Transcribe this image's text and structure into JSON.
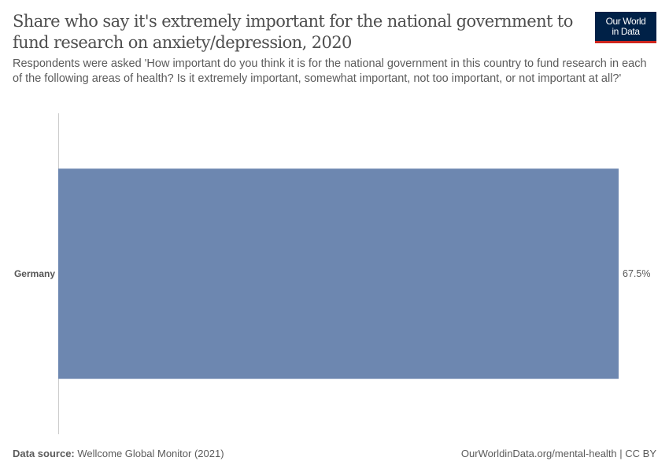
{
  "header": {
    "title": "Share who say it's extremely important for the national government to fund research on anxiety/depression, 2020",
    "subtitle": "Respondents were asked 'How important do you think it is for the national government in this country to fund research in each of the following areas of health? Is it extremely important, somewhat important, not too important, or not important at all?'",
    "logo_line1": "Our World",
    "logo_line2": "in Data"
  },
  "chart_data": {
    "type": "bar",
    "orientation": "horizontal",
    "categories": [
      "Germany"
    ],
    "values": [
      67.5
    ],
    "value_labels": [
      "67.5%"
    ],
    "unit": "%",
    "xlim": [
      0,
      67.5
    ],
    "grid": false,
    "bar_color": "#6d87b0"
  },
  "footer": {
    "source_label": "Data source:",
    "source": " Wellcome Global Monitor (2021)",
    "license": "OurWorldinData.org/mental-health | CC BY"
  }
}
